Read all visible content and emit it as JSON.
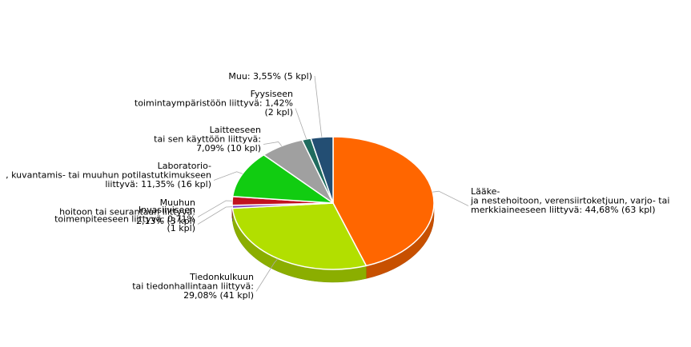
{
  "chart_data": {
    "type": "pie",
    "title": "",
    "legend": "none",
    "slices": [
      {
        "value": 44.68,
        "count": 63,
        "color": "#ff6600",
        "label_lines": [
          "Lääke-",
          "ja nestehoitoon, verensiirtoketjuun, varjo- tai",
          "merkkiaineeseen liittyvä: 44,68% (63 kpl)"
        ]
      },
      {
        "value": 29.08,
        "count": 41,
        "color": "#b2df00",
        "label_lines": [
          "Tiedonkulkuun",
          "tai tiedonhallintaan liittyvä:",
          "29,08% (41 kpl)"
        ]
      },
      {
        "value": 0.71,
        "count": 1,
        "color": "#7f3fbf",
        "label_lines": [
          "Invasiiviseen",
          "toimenpiteeseen liittyvä: 0,71%",
          "(1 kpl)"
        ]
      },
      {
        "value": 2.13,
        "count": 3,
        "color": "#c1121f",
        "label_lines": [
          "Muuhun",
          "hoitoon tai seurantaan liittyvä:",
          "2,13% (3 kpl)"
        ]
      },
      {
        "value": 11.35,
        "count": 16,
        "color": "#11cc11",
        "label_lines": [
          "Laboratorio-",
          ", kuvantamis- tai muuhun potilastutkimukseen",
          "liittyvä: 11,35% (16 kpl)"
        ]
      },
      {
        "value": 7.09,
        "count": 10,
        "color": "#a0a0a0",
        "label_lines": [
          "Laitteeseen",
          "tai sen käyttöön liittyvä:",
          "7,09% (10 kpl)"
        ]
      },
      {
        "value": 1.42,
        "count": 2,
        "color": "#1f6b5e",
        "label_lines": [
          "Fyysiseen",
          "toimintaympäristöön liittyvä: 1,42%",
          "(2 kpl)"
        ]
      },
      {
        "value": 3.55,
        "count": 5,
        "color": "#234e73",
        "label_lines": [
          "Muu: 3,55% (5 kpl)"
        ]
      }
    ]
  }
}
